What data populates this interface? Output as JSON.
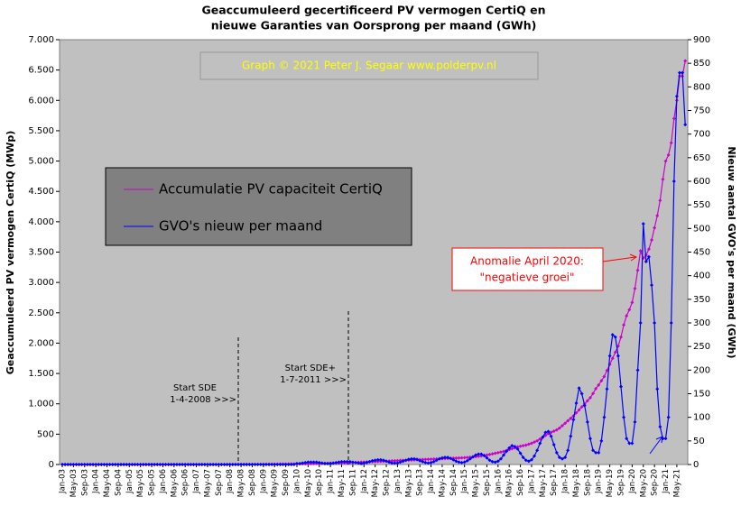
{
  "chart_data": {
    "type": "line",
    "title": [
      "Geaccumuleerd  gecertificeerd  PV vermogen CertiQ en",
      "nieuwe  Garanties  van Oorsprong  per maand (GWh)"
    ],
    "credit": "Graph  ©  2021  Peter  J.  Segaar   www.polderpv.nl",
    "ylabel": "Geaccumuleerd PV vermogen CertiQ (MWp)",
    "y2label": "Nieuw aantal GVO's per maand (GWh)",
    "annotations": {
      "anomaly": [
        "Anomalie  April 2020:",
        "\"negatieve groei\""
      ],
      "sde": [
        "Start SDE",
        "1-4-2008  >>>"
      ],
      "sdeplus": [
        "Start SDE+",
        "1-7-2011  >>>"
      ]
    },
    "ylim": [
      0,
      7000
    ],
    "yticks": [
      0,
      500,
      {
        "value": 1000,
        "label": "1.000"
      },
      {
        "value": 1500,
        "label": "1.500"
      },
      {
        "value": 2000,
        "label": "2.000"
      },
      {
        "value": 2500,
        "label": "2.500"
      },
      {
        "value": 3000,
        "label": "3.000"
      },
      {
        "value": 3500,
        "label": "3.500"
      },
      {
        "value": 4000,
        "label": "4.000"
      },
      {
        "value": 4500,
        "label": "4.500"
      },
      {
        "value": 5000,
        "label": "5.000"
      },
      {
        "value": 5500,
        "label": "5.500"
      },
      {
        "value": 6000,
        "label": "6.000"
      },
      {
        "value": 6500,
        "label": "6.500"
      },
      {
        "value": 7000,
        "label": "7.000"
      }
    ],
    "y2lim": [
      0,
      900
    ],
    "y2ticks": [
      0,
      50,
      100,
      150,
      200,
      250,
      300,
      350,
      400,
      450,
      500,
      550,
      600,
      650,
      700,
      750,
      800,
      850,
      900
    ],
    "categories": [
      "Jan-03",
      null,
      null,
      null,
      "May-03",
      null,
      null,
      null,
      "Sep-03",
      null,
      null,
      null,
      "Jan-04",
      null,
      null,
      null,
      "May-04",
      null,
      null,
      null,
      "Sep-04",
      null,
      null,
      null,
      "Jan-05",
      null,
      null,
      null,
      "May-05",
      null,
      null,
      null,
      "Sep-05",
      null,
      null,
      null,
      "Jan-06",
      null,
      null,
      null,
      "May-06",
      null,
      null,
      null,
      "Sep-06",
      null,
      null,
      null,
      "Jan-07",
      null,
      null,
      null,
      "May-07",
      null,
      null,
      null,
      "Sep-07",
      null,
      null,
      null,
      "Jan-08",
      null,
      null,
      null,
      "May-08",
      null,
      null,
      null,
      "Sep-08",
      null,
      null,
      null,
      "Jan-09",
      null,
      null,
      null,
      "May-09",
      null,
      null,
      null,
      "Sep-09",
      null,
      null,
      null,
      "Jan-10",
      null,
      null,
      null,
      "May-10",
      null,
      null,
      null,
      "Sep-10",
      null,
      null,
      null,
      "Jan-11",
      null,
      null,
      null,
      "May-11",
      null,
      null,
      null,
      "Sep-11",
      null,
      null,
      null,
      "Jan-12",
      null,
      null,
      null,
      "May-12",
      null,
      null,
      null,
      "Sep-12",
      null,
      null,
      null,
      "Jan-13",
      null,
      null,
      null,
      "May-13",
      null,
      null,
      null,
      "Sep-13",
      null,
      null,
      null,
      "Jan-14",
      null,
      null,
      null,
      "May-14",
      null,
      null,
      null,
      "Sep-14",
      null,
      null,
      null,
      "Jan-15",
      null,
      null,
      null,
      "May-15",
      null,
      null,
      null,
      "Sep-15",
      null,
      null,
      null,
      "Jan-16",
      null,
      null,
      null,
      "May-16",
      null,
      null,
      null,
      "Sep-16",
      null,
      null,
      null,
      "Jan-17",
      null,
      null,
      null,
      "May-17",
      null,
      null,
      null,
      "Sep-17",
      null,
      null,
      null,
      "Jan-18",
      null,
      null,
      null,
      "May-18",
      null,
      null,
      null,
      "Sep-18",
      null,
      null,
      null,
      "Jan-19",
      null,
      null,
      null,
      "May-19",
      null,
      null,
      null,
      "Sep-19",
      null,
      null,
      null,
      "Jan-20",
      null,
      null,
      null,
      "May-20",
      null,
      null,
      null,
      "Sep-20",
      null,
      null,
      null,
      "Jan-21",
      null,
      null,
      null,
      "May-21",
      null,
      null,
      null
    ],
    "series": [
      {
        "name": "Accumulatie PV capaciteit CertiQ",
        "color": "#cc00cc",
        "values": [
          0,
          0,
          0,
          0,
          0,
          0,
          0,
          0,
          0,
          0,
          0,
          0,
          0,
          0,
          0,
          0,
          0,
          0,
          0,
          0,
          0,
          0,
          0,
          0,
          0,
          0,
          0,
          0,
          0,
          0,
          0,
          0,
          0,
          0,
          0,
          0,
          0,
          0,
          0,
          0,
          0,
          0,
          0,
          0,
          0,
          0,
          0,
          0,
          0,
          0,
          0,
          0,
          0,
          0,
          0,
          0,
          0,
          0,
          0,
          0,
          1,
          1,
          1,
          1,
          2,
          2,
          2,
          2,
          3,
          3,
          3,
          3,
          4,
          4,
          5,
          5,
          6,
          6,
          7,
          7,
          8,
          8,
          9,
          9,
          10,
          11,
          12,
          13,
          14,
          15,
          16,
          17,
          18,
          19,
          20,
          21,
          22,
          23,
          24,
          25,
          26,
          27,
          28,
          30,
          32,
          34,
          36,
          38,
          40,
          42,
          44,
          46,
          48,
          50,
          52,
          54,
          56,
          58,
          60,
          62,
          64,
          66,
          68,
          70,
          72,
          74,
          76,
          78,
          80,
          82,
          84,
          86,
          88,
          90,
          92,
          94,
          96,
          98,
          100,
          102,
          104,
          106,
          108,
          110,
          112,
          116,
          120,
          125,
          130,
          135,
          140,
          148,
          156,
          165,
          175,
          185,
          195,
          205,
          215,
          230,
          245,
          260,
          275,
          290,
          300,
          310,
          320,
          335,
          350,
          370,
          390,
          420,
          450,
          480,
          510,
          530,
          550,
          570,
          600,
          640,
          680,
          720,
          760,
          800,
          850,
          900,
          950,
          1000,
          1050,
          1100,
          1170,
          1250,
          1310,
          1380,
          1450,
          1550,
          1650,
          1750,
          1850,
          1950,
          2100,
          2300,
          2450,
          2550,
          2670,
          2900,
          3200,
          3520,
          3400,
          3450,
          3550,
          3700,
          3900,
          4100,
          4350,
          4700,
          5000,
          5100,
          5300,
          5700,
          6000,
          6400,
          6400,
          6650
        ]
      },
      {
        "name": "GVO's nieuw per maand",
        "color": "#0000ff",
        "axis": "y2",
        "values": [
          0,
          0,
          0,
          0,
          0,
          0,
          0,
          0,
          0,
          0,
          0,
          0,
          0,
          0,
          0,
          0,
          0,
          0,
          0,
          0,
          0,
          0,
          0,
          0,
          0,
          0,
          0,
          0,
          0,
          0,
          0,
          0,
          0,
          0,
          0,
          0,
          0,
          0,
          0,
          0,
          0,
          0,
          0,
          0,
          0,
          0,
          0,
          0,
          0,
          0,
          0,
          0,
          0,
          0,
          0,
          0,
          0,
          0,
          0,
          0,
          0,
          0,
          0,
          0,
          0,
          0,
          0,
          0,
          0,
          0,
          0,
          0,
          0,
          0,
          0,
          0,
          0,
          0,
          0,
          0,
          0,
          0,
          0,
          0,
          2,
          2,
          3,
          4,
          5,
          5,
          5,
          5,
          4,
          3,
          2,
          2,
          2,
          3,
          4,
          5,
          6,
          6,
          6,
          6,
          5,
          4,
          3,
          2,
          3,
          4,
          6,
          8,
          9,
          10,
          10,
          9,
          7,
          5,
          3,
          3,
          3,
          5,
          7,
          9,
          11,
          12,
          12,
          11,
          8,
          6,
          4,
          3,
          4,
          6,
          9,
          12,
          14,
          15,
          15,
          13,
          10,
          7,
          5,
          4,
          5,
          8,
          12,
          16,
          20,
          22,
          22,
          19,
          14,
          9,
          6,
          5,
          7,
          12,
          20,
          28,
          35,
          40,
          38,
          33,
          24,
          15,
          9,
          7,
          10,
          18,
          30,
          45,
          58,
          68,
          70,
          60,
          42,
          25,
          15,
          12,
          15,
          30,
          60,
          95,
          130,
          162,
          150,
          125,
          90,
          55,
          30,
          25,
          25,
          50,
          100,
          160,
          230,
          275,
          270,
          230,
          165,
          100,
          55,
          45,
          45,
          90,
          200,
          300,
          510,
          430,
          440,
          380,
          300,
          160,
          80,
          55,
          55,
          100,
          300,
          600,
          780,
          830,
          830,
          720
        ]
      }
    ]
  }
}
